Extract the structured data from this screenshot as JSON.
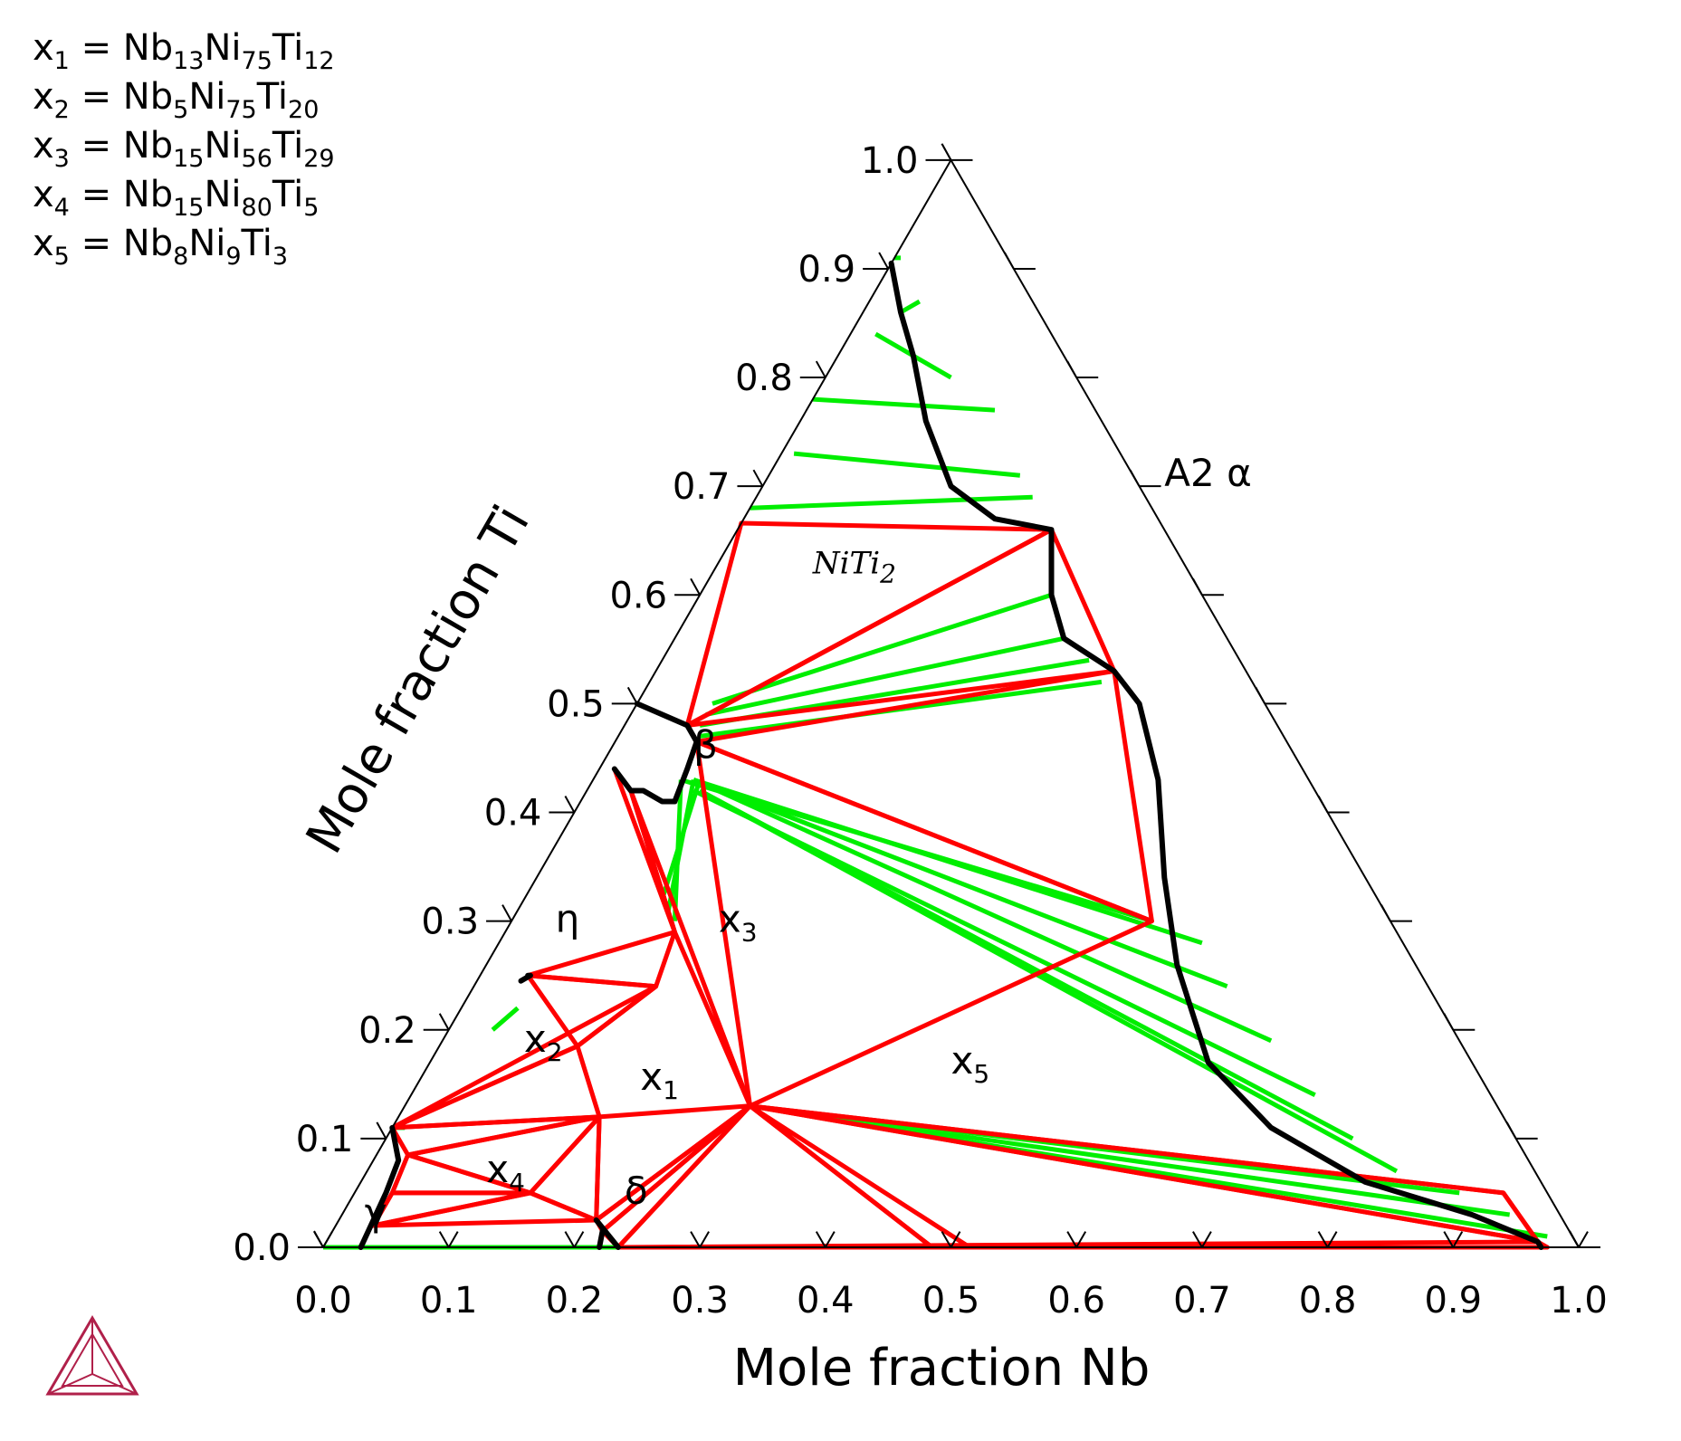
{
  "legend": {
    "x1": [
      "x",
      "1",
      " = Nb",
      "13",
      "Ni",
      "75",
      "Ti",
      "12"
    ],
    "x2": [
      "x",
      "2",
      " = Nb",
      "5",
      "Ni",
      "75",
      "Ti",
      "20"
    ],
    "x3": [
      "x",
      "3",
      " = Nb",
      "15",
      "Ni",
      "56",
      "Ti",
      "29"
    ],
    "x4": [
      "x",
      "4",
      " = Nb",
      "15",
      "Ni",
      "80",
      "Ti",
      "5"
    ],
    "x5": [
      "x",
      "5",
      " = Nb",
      "8",
      "Ni",
      "9",
      "Ti",
      "3"
    ]
  },
  "colors": {
    "tie_line": "#00ee00",
    "three_phase": "#ff0000",
    "boundary": "#000000",
    "logo": "#b0204a"
  },
  "chart_data": {
    "type": "ternary",
    "xlabel": "Mole fraction Nb",
    "ylabel": "Mole fraction Ti",
    "ticks": [
      "0.0",
      "0.1",
      "0.2",
      "0.3",
      "0.4",
      "0.5",
      "0.6",
      "0.7",
      "0.8",
      "0.9",
      "1.0"
    ],
    "phase_labels": [
      {
        "text": "A2 α",
        "nb": 0.32,
        "ti": 0.7
      },
      {
        "text": "β",
        "nb": 0.07,
        "ti": 0.45
      },
      {
        "text": "NiTi",
        "sub": "2",
        "nb": 0.08,
        "ti": 0.62,
        "italic": true
      },
      {
        "text": "η",
        "nb": 0.04,
        "ti": 0.29
      },
      {
        "text": "x",
        "sub": "3",
        "nb": 0.17,
        "ti": 0.29
      },
      {
        "text": "x",
        "sub": "2",
        "nb": 0.07,
        "ti": 0.18
      },
      {
        "text": "x",
        "sub": "1",
        "nb": 0.18,
        "ti": 0.145
      },
      {
        "text": "x",
        "sub": "5",
        "nb": 0.42,
        "ti": 0.16
      },
      {
        "text": "x",
        "sub": "4",
        "nb": 0.1,
        "ti": 0.06
      },
      {
        "text": "δ",
        "nb": 0.22,
        "ti": 0.04
      },
      {
        "text": "γ",
        "nb": 0.023,
        "ti": 0.02
      }
    ],
    "three_phase_triangles": [
      [
        [
          0.0,
          0.666
        ],
        [
          0.25,
          0.66
        ],
        [
          0.05,
          0.48
        ]
      ],
      [
        [
          0.05,
          0.48
        ],
        [
          0.25,
          0.66
        ],
        [
          0.365,
          0.53
        ]
      ],
      [
        [
          0.065,
          0.465
        ],
        [
          0.365,
          0.53
        ],
        [
          0.51,
          0.3
        ]
      ],
      [
        [
          0.065,
          0.465
        ],
        [
          0.51,
          0.3
        ],
        [
          0.275,
          0.13
        ]
      ],
      [
        [
          0.012,
          0.44
        ],
        [
          0.135,
          0.29
        ],
        [
          0.035,
          0.42
        ]
      ],
      [
        [
          0.035,
          0.42
        ],
        [
          0.135,
          0.29
        ],
        [
          0.275,
          0.13
        ]
      ],
      [
        [
          0.275,
          0.13
        ],
        [
          0.915,
          0.05
        ],
        [
          0.965,
          0.005
        ]
      ],
      [
        [
          0.275,
          0.13
        ],
        [
          0.515,
          0.0
        ],
        [
          0.485,
          0.0
        ]
      ],
      [
        [
          0.145,
          0.24
        ],
        [
          0.135,
          0.29
        ],
        [
          0.038,
          0.25
        ]
      ],
      [
        [
          0.038,
          0.25
        ],
        [
          0.145,
          0.24
        ],
        [
          0.11,
          0.185
        ]
      ],
      [
        [
          0.0,
          0.11
        ],
        [
          0.11,
          0.185
        ],
        [
          0.145,
          0.24
        ]
      ],
      [
        [
          0.0,
          0.11
        ],
        [
          0.11,
          0.185
        ],
        [
          0.16,
          0.12
        ]
      ],
      [
        [
          0.0,
          0.11
        ],
        [
          0.16,
          0.12
        ],
        [
          0.025,
          0.085
        ]
      ],
      [
        [
          0.025,
          0.085
        ],
        [
          0.16,
          0.12
        ],
        [
          0.14,
          0.05
        ]
      ],
      [
        [
          0.025,
          0.085
        ],
        [
          0.14,
          0.05
        ],
        [
          0.03,
          0.05
        ]
      ],
      [
        [
          0.03,
          0.05
        ],
        [
          0.14,
          0.05
        ],
        [
          0.03,
          0.02
        ]
      ],
      [
        [
          0.03,
          0.02
        ],
        [
          0.14,
          0.05
        ],
        [
          0.205,
          0.025
        ]
      ],
      [
        [
          0.16,
          0.12
        ],
        [
          0.14,
          0.05
        ],
        [
          0.205,
          0.025
        ]
      ],
      [
        [
          0.16,
          0.12
        ],
        [
          0.205,
          0.025
        ],
        [
          0.275,
          0.13
        ]
      ],
      [
        [
          0.205,
          0.025
        ],
        [
          0.275,
          0.13
        ],
        [
          0.215,
          0.015
        ]
      ],
      [
        [
          0.215,
          0.015
        ],
        [
          0.275,
          0.13
        ],
        [
          0.235,
          0.0
        ]
      ],
      [
        [
          0.235,
          0.0
        ],
        [
          0.275,
          0.13
        ],
        [
          0.485,
          0.0
        ]
      ],
      [
        [
          0.235,
          0.0
        ],
        [
          0.485,
          0.0
        ],
        [
          0.975,
          0.0
        ]
      ],
      [
        [
          0.235,
          0.0
        ],
        [
          0.975,
          0.0
        ],
        [
          0.965,
          0.005
        ]
      ],
      [
        [
          0.275,
          0.13
        ],
        [
          0.965,
          0.005
        ],
        [
          0.915,
          0.05
        ]
      ]
    ],
    "tie_lines": [
      [
        [
          0.0,
          0.91
        ],
        [
          0.005,
          0.91
        ]
      ],
      [
        [
          0.03,
          0.86
        ],
        [
          0.04,
          0.87
        ]
      ],
      [
        [
          0.02,
          0.84
        ],
        [
          0.1,
          0.8
        ]
      ],
      [
        [
          0.0,
          0.78
        ],
        [
          0.15,
          0.77
        ]
      ],
      [
        [
          0.01,
          0.73
        ],
        [
          0.2,
          0.71
        ]
      ],
      [
        [
          0.0,
          0.68
        ],
        [
          0.22,
          0.69
        ]
      ],
      [
        [
          0.06,
          0.5
        ],
        [
          0.28,
          0.6
        ]
      ],
      [
        [
          0.06,
          0.49
        ],
        [
          0.31,
          0.56
        ]
      ],
      [
        [
          0.06,
          0.48
        ],
        [
          0.34,
          0.54
        ]
      ],
      [
        [
          0.065,
          0.47
        ],
        [
          0.36,
          0.52
        ]
      ],
      [
        [
          0.07,
          0.43
        ],
        [
          0.51,
          0.3
        ]
      ],
      [
        [
          0.08,
          0.43
        ],
        [
          0.56,
          0.28
        ]
      ],
      [
        [
          0.08,
          0.43
        ],
        [
          0.6,
          0.24
        ]
      ],
      [
        [
          0.08,
          0.43
        ],
        [
          0.66,
          0.19
        ]
      ],
      [
        [
          0.085,
          0.42
        ],
        [
          0.72,
          0.14
        ]
      ],
      [
        [
          0.09,
          0.42
        ],
        [
          0.77,
          0.1
        ]
      ],
      [
        [
          0.09,
          0.42
        ],
        [
          0.82,
          0.07
        ]
      ],
      [
        [
          0.275,
          0.13
        ],
        [
          0.88,
          0.05
        ]
      ],
      [
        [
          0.275,
          0.13
        ],
        [
          0.93,
          0.03
        ]
      ],
      [
        [
          0.275,
          0.13
        ],
        [
          0.97,
          0.01
        ]
      ],
      [
        [
          0.07,
          0.43
        ],
        [
          0.13,
          0.3
        ]
      ],
      [
        [
          0.08,
          0.43
        ],
        [
          0.12,
          0.31
        ]
      ],
      [
        [
          0.085,
          0.43
        ],
        [
          0.11,
          0.32
        ]
      ],
      [
        [
          0.0,
          0.0
        ],
        [
          0.24,
          0.0
        ]
      ],
      [
        [
          0.0,
          0.11
        ],
        [
          0.01,
          0.11
        ]
      ],
      [
        [
          0.035,
          0.2
        ],
        [
          0.045,
          0.22
        ]
      ]
    ],
    "phase_boundaries": [
      [
        [
          0.0,
          0.905
        ],
        [
          0.03,
          0.86
        ],
        [
          0.06,
          0.82
        ],
        [
          0.1,
          0.76
        ],
        [
          0.15,
          0.7
        ],
        [
          0.2,
          0.67
        ],
        [
          0.25,
          0.66
        ],
        [
          0.28,
          0.6
        ],
        [
          0.31,
          0.56
        ],
        [
          0.365,
          0.53
        ],
        [
          0.4,
          0.5
        ],
        [
          0.45,
          0.43
        ],
        [
          0.5,
          0.34
        ],
        [
          0.55,
          0.26
        ],
        [
          0.62,
          0.17
        ],
        [
          0.7,
          0.11
        ],
        [
          0.8,
          0.06
        ],
        [
          0.9,
          0.03
        ],
        [
          0.965,
          0.005
        ],
        [
          0.97,
          0.0
        ]
      ],
      [
        [
          0.0,
          0.5
        ],
        [
          0.05,
          0.48
        ],
        [
          0.065,
          0.465
        ],
        [
          0.07,
          0.44
        ],
        [
          0.075,
          0.41
        ],
        [
          0.065,
          0.41
        ],
        [
          0.045,
          0.42
        ],
        [
          0.035,
          0.42
        ],
        [
          0.012,
          0.44
        ]
      ],
      [
        [
          0.035,
          0.245
        ],
        [
          0.04,
          0.25
        ],
        [
          0.038,
          0.25
        ]
      ],
      [
        [
          0.0,
          0.11
        ],
        [
          0.02,
          0.08
        ],
        [
          0.025,
          0.05
        ],
        [
          0.03,
          0.0
        ]
      ],
      [
        [
          0.215,
          0.015
        ],
        [
          0.22,
          0.0
        ]
      ],
      [
        [
          0.205,
          0.025
        ],
        [
          0.235,
          0.0
        ]
      ]
    ]
  }
}
